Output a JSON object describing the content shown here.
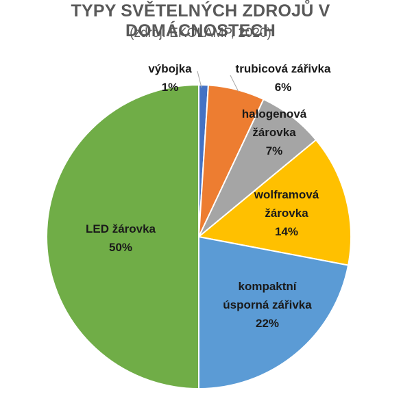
{
  "chart_data": {
    "type": "pie",
    "title": "TYPY SVĚTELNÝCH ZDROJŮ V DOMÁCNOSTECH",
    "subtitle": "(zdroj: EKOLAMP, 2020)",
    "slices": [
      {
        "name": "výbojka",
        "value": 1,
        "label_lines": [
          "výbojka",
          "1%"
        ],
        "color": "#4472C4"
      },
      {
        "name": "trubicová zářivka",
        "value": 6,
        "label_lines": [
          "trubicová zářivka",
          "6%"
        ],
        "color": "#ED7D31"
      },
      {
        "name": "halogenová žárovka",
        "value": 7,
        "label_lines": [
          "halogenová",
          "žárovka",
          "7%"
        ],
        "color": "#A5A5A5"
      },
      {
        "name": "wolframová žárovka",
        "value": 14,
        "label_lines": [
          "wolframová",
          "žárovka",
          "14%"
        ],
        "color": "#FFC000"
      },
      {
        "name": "kompaktní úsporná zářivka",
        "value": 22,
        "label_lines": [
          "kompaktní",
          "úsporná zářivka",
          "22%"
        ],
        "color": "#5B9BD5"
      },
      {
        "name": "LED žárovka",
        "value": 50,
        "label_lines": [
          "LED žárovka",
          "50%"
        ],
        "color": "#70AD47"
      }
    ]
  }
}
